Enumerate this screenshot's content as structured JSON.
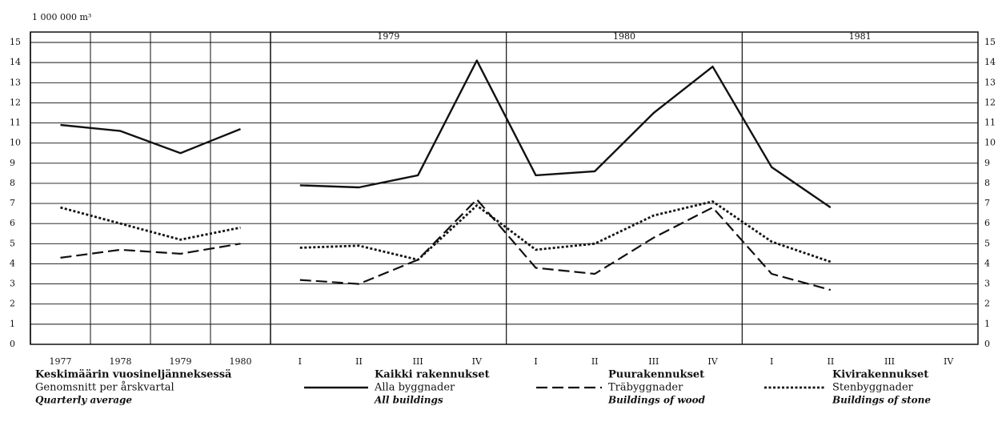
{
  "chart_data": [
    {
      "type": "line",
      "y_label": "1 000 000 m³",
      "categories": [
        "1977",
        "1978",
        "1979",
        "1980"
      ],
      "series": [
        {
          "color": "#111111",
          "dash": "solid",
          "values": [
            10.9,
            10.6,
            9.5,
            10.7
          ]
        },
        {
          "color": "#111111",
          "dash": "dashed",
          "values": [
            4.3,
            4.7,
            4.5,
            5.0
          ]
        },
        {
          "color": "#111111",
          "dash": "dotted",
          "values": [
            6.8,
            6.0,
            5.2,
            5.8
          ]
        }
      ],
      "ylim": [
        0,
        15
      ],
      "yticks": [
        0,
        1,
        2,
        3,
        4,
        5,
        6,
        7,
        8,
        9,
        10,
        11,
        12,
        13,
        14,
        15
      ],
      "grid": true
    },
    {
      "type": "line",
      "year_labels": [
        "1979",
        "1980",
        "1981"
      ],
      "categories": [
        "I",
        "II",
        "III",
        "IV",
        "I",
        "II",
        "III",
        "IV",
        "I",
        "II",
        "III",
        "IV"
      ],
      "legend_title": [
        "Keskimäärin vuosineljänneksessä",
        "Genomsnitt per årskvartal",
        "Quarterly average"
      ],
      "series": [
        {
          "name": "Kaikki rakennukset",
          "name_sv": "Alla byggnader",
          "name_en": "All buildings",
          "color": "#111111",
          "dash": "solid",
          "values": [
            7.9,
            7.8,
            8.4,
            14.1,
            8.4,
            8.6,
            11.5,
            13.8,
            8.8,
            6.8,
            null,
            null
          ]
        },
        {
          "name": "Puurakennukset",
          "name_sv": "Träbyggnader",
          "name_en": "Buildings of wood",
          "color": "#111111",
          "dash": "dashed",
          "values": [
            3.2,
            3.0,
            4.2,
            7.2,
            3.8,
            3.5,
            5.3,
            6.8,
            3.5,
            2.7,
            null,
            null
          ]
        },
        {
          "name": "Kivirakennukset",
          "name_sv": "Stenbyggnader",
          "name_en": "Buildings of stone",
          "color": "#111111",
          "dash": "dotted",
          "values": [
            4.8,
            4.9,
            4.2,
            6.9,
            4.7,
            5.0,
            6.4,
            7.1,
            5.1,
            4.1,
            null,
            null
          ]
        }
      ],
      "ylim": [
        0,
        15
      ],
      "yticks": [
        0,
        1,
        2,
        3,
        4,
        5,
        6,
        7,
        8,
        9,
        10,
        11,
        12,
        13,
        14,
        15
      ],
      "grid": true
    }
  ]
}
